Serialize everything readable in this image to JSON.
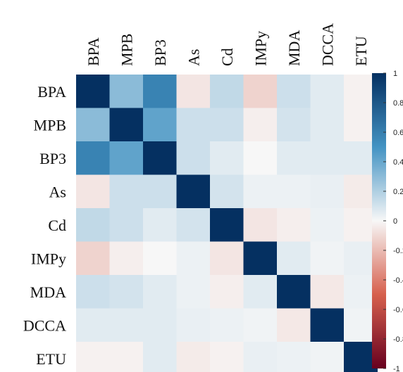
{
  "chart_data": {
    "type": "heatmap",
    "row_labels": [
      "BPA",
      "MPB",
      "BP3",
      "As",
      "Cd",
      "IMPy",
      "MDA",
      "DCCA",
      "ETU"
    ],
    "col_labels": [
      "BPA",
      "MPB",
      "BP3",
      "As",
      "Cd",
      "IMPy",
      "MDA",
      "DCCA",
      "ETU"
    ],
    "values": [
      [
        1.0,
        0.3,
        0.58,
        -0.06,
        0.15,
        -0.12,
        0.12,
        0.06,
        -0.02
      ],
      [
        0.3,
        1.0,
        0.42,
        0.12,
        0.12,
        -0.03,
        0.1,
        0.06,
        -0.02
      ],
      [
        0.58,
        0.42,
        1.0,
        0.12,
        0.06,
        0.0,
        0.06,
        0.06,
        0.06
      ],
      [
        -0.06,
        0.12,
        0.12,
        1.0,
        0.1,
        0.03,
        0.03,
        0.04,
        -0.04
      ],
      [
        0.15,
        0.12,
        0.06,
        0.1,
        1.0,
        -0.06,
        -0.03,
        0.03,
        -0.02
      ],
      [
        -0.12,
        -0.03,
        0.0,
        0.03,
        -0.06,
        1.0,
        0.06,
        0.02,
        0.04
      ],
      [
        0.12,
        0.1,
        0.06,
        0.03,
        -0.03,
        0.06,
        1.0,
        -0.05,
        0.03
      ],
      [
        0.06,
        0.06,
        0.06,
        0.04,
        0.03,
        0.02,
        -0.05,
        1.0,
        0.02
      ],
      [
        -0.02,
        -0.02,
        0.06,
        -0.04,
        -0.02,
        0.04,
        0.03,
        0.02,
        1.0
      ]
    ],
    "colorbar": {
      "range": [
        -1,
        1
      ],
      "ticks": [
        "1",
        "0.8",
        "0.6",
        "0.4",
        "0.2",
        "0",
        "-0.2",
        "-0.4",
        "-0.6",
        "-0.8",
        "-1"
      ],
      "tick_values": [
        1,
        0.8,
        0.6,
        0.4,
        0.2,
        0,
        -0.2,
        -0.4,
        -0.6,
        -0.8,
        -1
      ]
    },
    "palette": {
      "negative_end": "#67001f",
      "negative_mid": "#d6604d",
      "neutral": "#f7f7f7",
      "positive_mid": "#4393c3",
      "positive_end": "#053061"
    },
    "grid": false,
    "legend_position": "right"
  }
}
